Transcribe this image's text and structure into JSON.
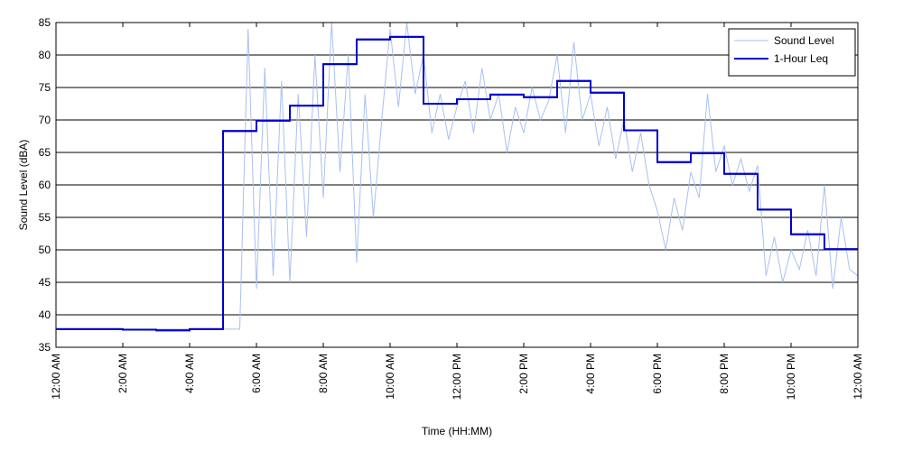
{
  "chart_data": {
    "type": "line",
    "xlabel": "Time (HH:MM)",
    "ylabel": "Sound Level (dBA)",
    "xlim": [
      0,
      24
    ],
    "xticks": [
      {
        "value": 0,
        "label": "12:00 AM"
      },
      {
        "value": 2,
        "label": "2:00 AM"
      },
      {
        "value": 4,
        "label": "4:00 AM"
      },
      {
        "value": 6,
        "label": "6:00 AM"
      },
      {
        "value": 8,
        "label": "8:00 AM"
      },
      {
        "value": 10,
        "label": "10:00 AM"
      },
      {
        "value": 12,
        "label": "12:00 PM"
      },
      {
        "value": 14,
        "label": "2:00 PM"
      },
      {
        "value": 16,
        "label": "4:00 PM"
      },
      {
        "value": 18,
        "label": "6:00 PM"
      },
      {
        "value": 20,
        "label": "8:00 PM"
      },
      {
        "value": 22,
        "label": "10:00 PM"
      },
      {
        "value": 24,
        "label": "12:00 AM"
      }
    ],
    "ylim": [
      35,
      85
    ],
    "yticks": [
      35,
      40,
      45,
      50,
      55,
      60,
      65,
      70,
      75,
      80,
      85
    ],
    "grid": true,
    "legend": "upper right",
    "series": [
      {
        "name": "Sound Level",
        "color": "#a8c0f0",
        "x": [
          0,
          5.5,
          5.75,
          6,
          6.25,
          6.5,
          6.75,
          7,
          7.25,
          7.5,
          7.75,
          8,
          8.25,
          8.5,
          8.75,
          9,
          9.25,
          9.5,
          9.75,
          10,
          10.25,
          10.5,
          10.75,
          11,
          11.25,
          11.5,
          11.75,
          12,
          12.25,
          12.5,
          12.75,
          13,
          13.25,
          13.5,
          13.75,
          14,
          14.25,
          14.5,
          14.75,
          15,
          15.25,
          15.5,
          15.75,
          16,
          16.25,
          16.5,
          16.75,
          17,
          17.25,
          17.5,
          17.75,
          18,
          18.25,
          18.5,
          18.75,
          19,
          19.25,
          19.5,
          19.75,
          20,
          20.25,
          20.5,
          20.75,
          21,
          21.25,
          21.5,
          21.75,
          22,
          22.25,
          22.5,
          22.75,
          23,
          23.25,
          23.5,
          23.75,
          24
        ],
        "values": [
          37.8,
          37.8,
          84,
          44,
          78,
          46,
          76,
          45,
          74,
          52,
          80,
          58,
          85,
          62,
          80,
          48,
          74,
          55,
          70,
          84,
          72,
          85,
          74,
          80,
          68,
          74,
          67,
          72,
          76,
          68,
          78,
          70,
          74,
          65,
          72,
          68,
          75,
          70,
          73,
          80,
          68,
          82,
          70,
          74,
          66,
          72,
          64,
          70,
          62,
          68,
          60,
          56,
          50,
          58,
          53,
          62,
          58,
          74,
          62,
          66,
          60,
          64,
          59,
          63,
          46,
          52,
          45,
          50,
          47,
          53,
          46,
          60,
          44,
          55,
          47,
          46
        ]
      },
      {
        "name": "1-Hour Leq",
        "color": "#0000cc",
        "bins": [
          0,
          1,
          2,
          3,
          4,
          5,
          6,
          7,
          8,
          9,
          10,
          11,
          12,
          13,
          14,
          15,
          16,
          17,
          18,
          19,
          20,
          21,
          22,
          23,
          24
        ],
        "values": [
          37.8,
          37.8,
          37.7,
          37.6,
          37.8,
          68.3,
          69.9,
          72.2,
          78.6,
          82.4,
          82.8,
          72.5,
          73.2,
          73.9,
          73.5,
          76.0,
          74.2,
          68.4,
          63.5,
          64.9,
          61.7,
          56.2,
          52.4,
          50.1
        ]
      }
    ]
  }
}
